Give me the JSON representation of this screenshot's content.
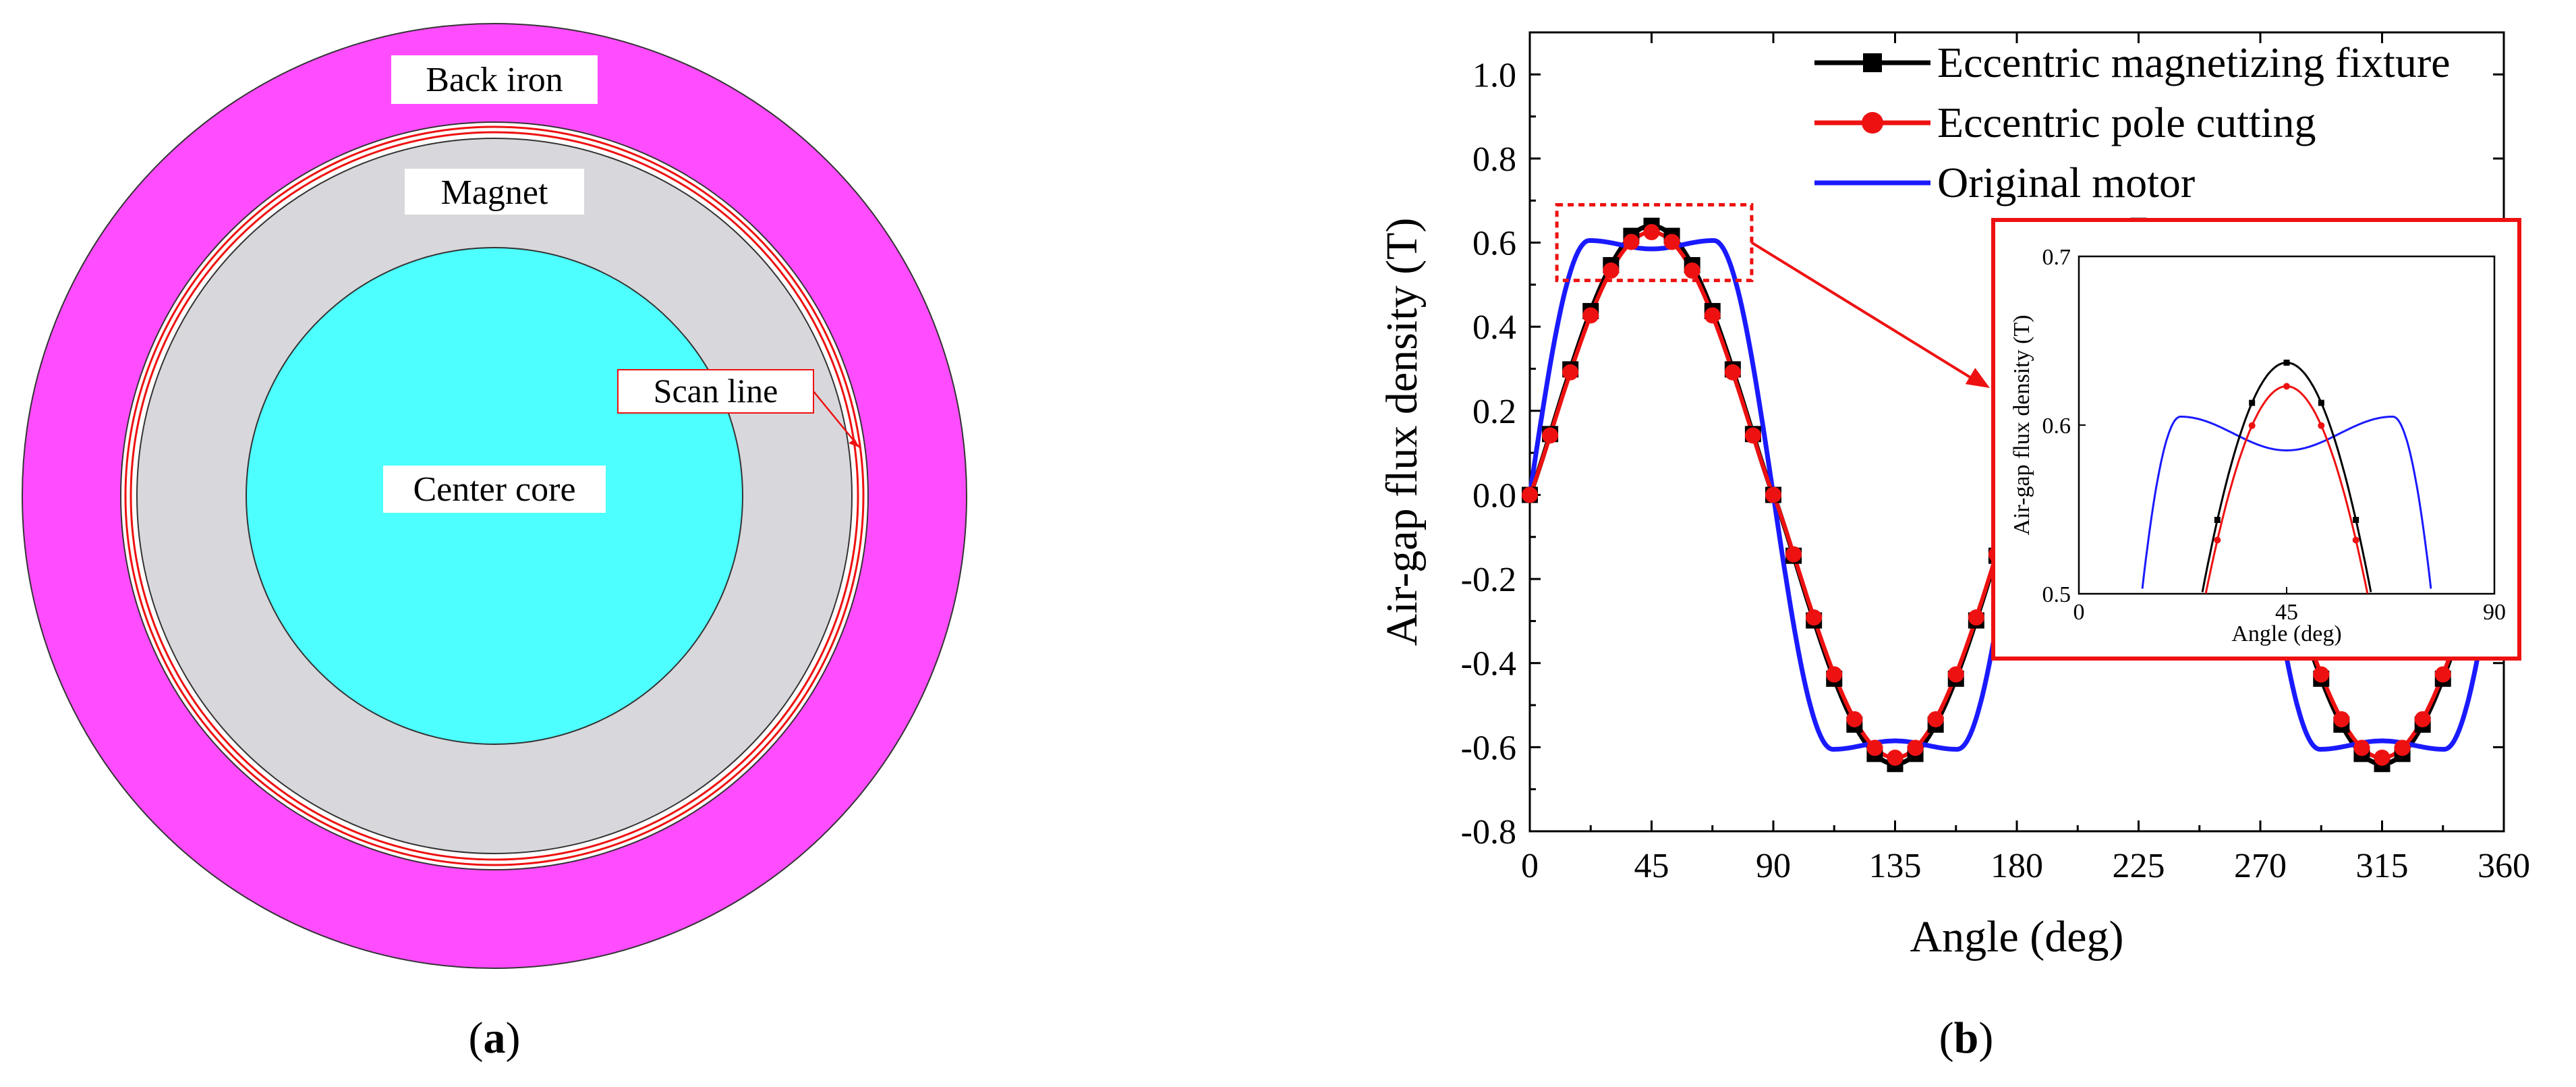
{
  "panel_a": {
    "caption": "a",
    "labels": {
      "back_iron": "Back iron",
      "magnet": "Magnet",
      "scan_line": "Scan line",
      "center_core": "Center core"
    },
    "colors": {
      "back_iron": "#ff4cff",
      "magnet": "#d8d8dc",
      "center_core": "#4dffff",
      "scan_line": "#ee1111"
    }
  },
  "panel_b": {
    "caption": "b"
  },
  "chart_data": [
    {
      "type": "line",
      "title": "",
      "xlabel": "Angle (deg)",
      "ylabel": "Air-gap flux density (T)",
      "xlim": [
        0,
        360
      ],
      "ylim": [
        -0.8,
        1.1
      ],
      "xticks": [
        0,
        45,
        90,
        135,
        180,
        225,
        270,
        315,
        360
      ],
      "yticks": [
        -0.8,
        -0.6,
        -0.4,
        -0.2,
        0.0,
        0.2,
        0.4,
        0.6,
        0.8,
        1.0
      ],
      "xtick_labels": [
        "0",
        "45",
        "90",
        "135",
        "180",
        "225",
        "270",
        "315",
        "360"
      ],
      "ytick_labels": [
        "-0.8",
        "-0.6",
        "-0.4",
        "-0.2",
        "0.0",
        "0.2",
        "0.4",
        "0.6",
        "0.8",
        "1.0"
      ],
      "legend_position": "top-right",
      "series": [
        {
          "name": "Eccentric magnetizing fixture",
          "color": "#000000",
          "marker": "square",
          "model": "peak 0.64 T, 90 deg half-wave period, near-sinusoidal"
        },
        {
          "name": "Eccentric pole cutting",
          "color": "#ee1111",
          "marker": "circle",
          "model": "peak 0.625 T, 90 deg half-wave period, near-sinusoidal"
        },
        {
          "name": "Original motor",
          "color": "#1a1aff",
          "marker": "none",
          "model": "flat-topped wave, 0.605 T shoulders at ~22 and ~68 deg, 0.585 T dip at 45 deg"
        }
      ],
      "zoom_box": {
        "x": [
          10,
          82
        ],
        "y": [
          0.51,
          0.69
        ]
      }
    },
    {
      "type": "line",
      "title": "",
      "xlabel": "Angle (deg)",
      "ylabel": "Air-gap flux density (T)",
      "xlim": [
        0,
        90
      ],
      "ylim": [
        0.5,
        0.7
      ],
      "xticks": [
        0,
        45,
        90
      ],
      "yticks": [
        0.5,
        0.6,
        0.7
      ],
      "xtick_labels": [
        "0",
        "45",
        "90"
      ],
      "ytick_labels": [
        "0.5",
        "0.6",
        "0.7"
      ],
      "series": [
        {
          "name": "Eccentric magnetizing fixture",
          "color": "#000000",
          "peak": 0.637,
          "peak_angle": 45
        },
        {
          "name": "Eccentric pole cutting",
          "color": "#ee1111",
          "peak": 0.623,
          "peak_angle": 45
        },
        {
          "name": "Original motor",
          "color": "#1a1aff",
          "shoulder": 0.605,
          "dip": 0.585
        }
      ]
    }
  ]
}
